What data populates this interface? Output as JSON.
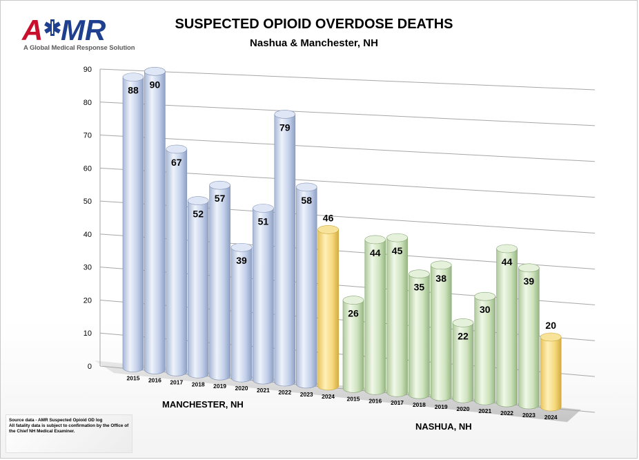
{
  "logo": {
    "text": "AMR",
    "tagline": "A Global Medical Response Solution",
    "colors": {
      "red": "#c8102e",
      "blue": "#1f3f8f"
    }
  },
  "header": {
    "title": "SUSPECTED OPIOID OVERDOSE DEATHS",
    "subtitle": "Nashua & Manchester, NH"
  },
  "footer": {
    "source_line1": "Source data - AMR Suspected Opioid OD log",
    "source_line2": "All fatality data is subject to confirmation by the Office of the Chief NH Medical Examiner."
  },
  "chart_data": {
    "type": "bar",
    "style": "3d-cylinder",
    "ylim": [
      0,
      90
    ],
    "yticks": [
      0,
      10,
      20,
      30,
      40,
      50,
      60,
      70,
      80,
      90
    ],
    "grid": true,
    "groups": [
      {
        "label": "MANCHESTER, NH",
        "categories": [
          "2015",
          "2016",
          "2017",
          "2018",
          "2019",
          "2020",
          "2021",
          "2022",
          "2023",
          "2024"
        ],
        "values": [
          88,
          90,
          67,
          52,
          57,
          39,
          51,
          79,
          58,
          46
        ],
        "color": "#c9d6ee",
        "highlight_color": "#f5d77a"
      },
      {
        "label": "NASHUA, NH",
        "categories": [
          "2015",
          "2016",
          "2017",
          "2018",
          "2019",
          "2020",
          "2021",
          "2022",
          "2023",
          "2024"
        ],
        "values": [
          26,
          44,
          45,
          35,
          38,
          22,
          30,
          44,
          39,
          20
        ],
        "color": "#d3e8c4",
        "highlight_color": "#f5d77a"
      }
    ]
  }
}
